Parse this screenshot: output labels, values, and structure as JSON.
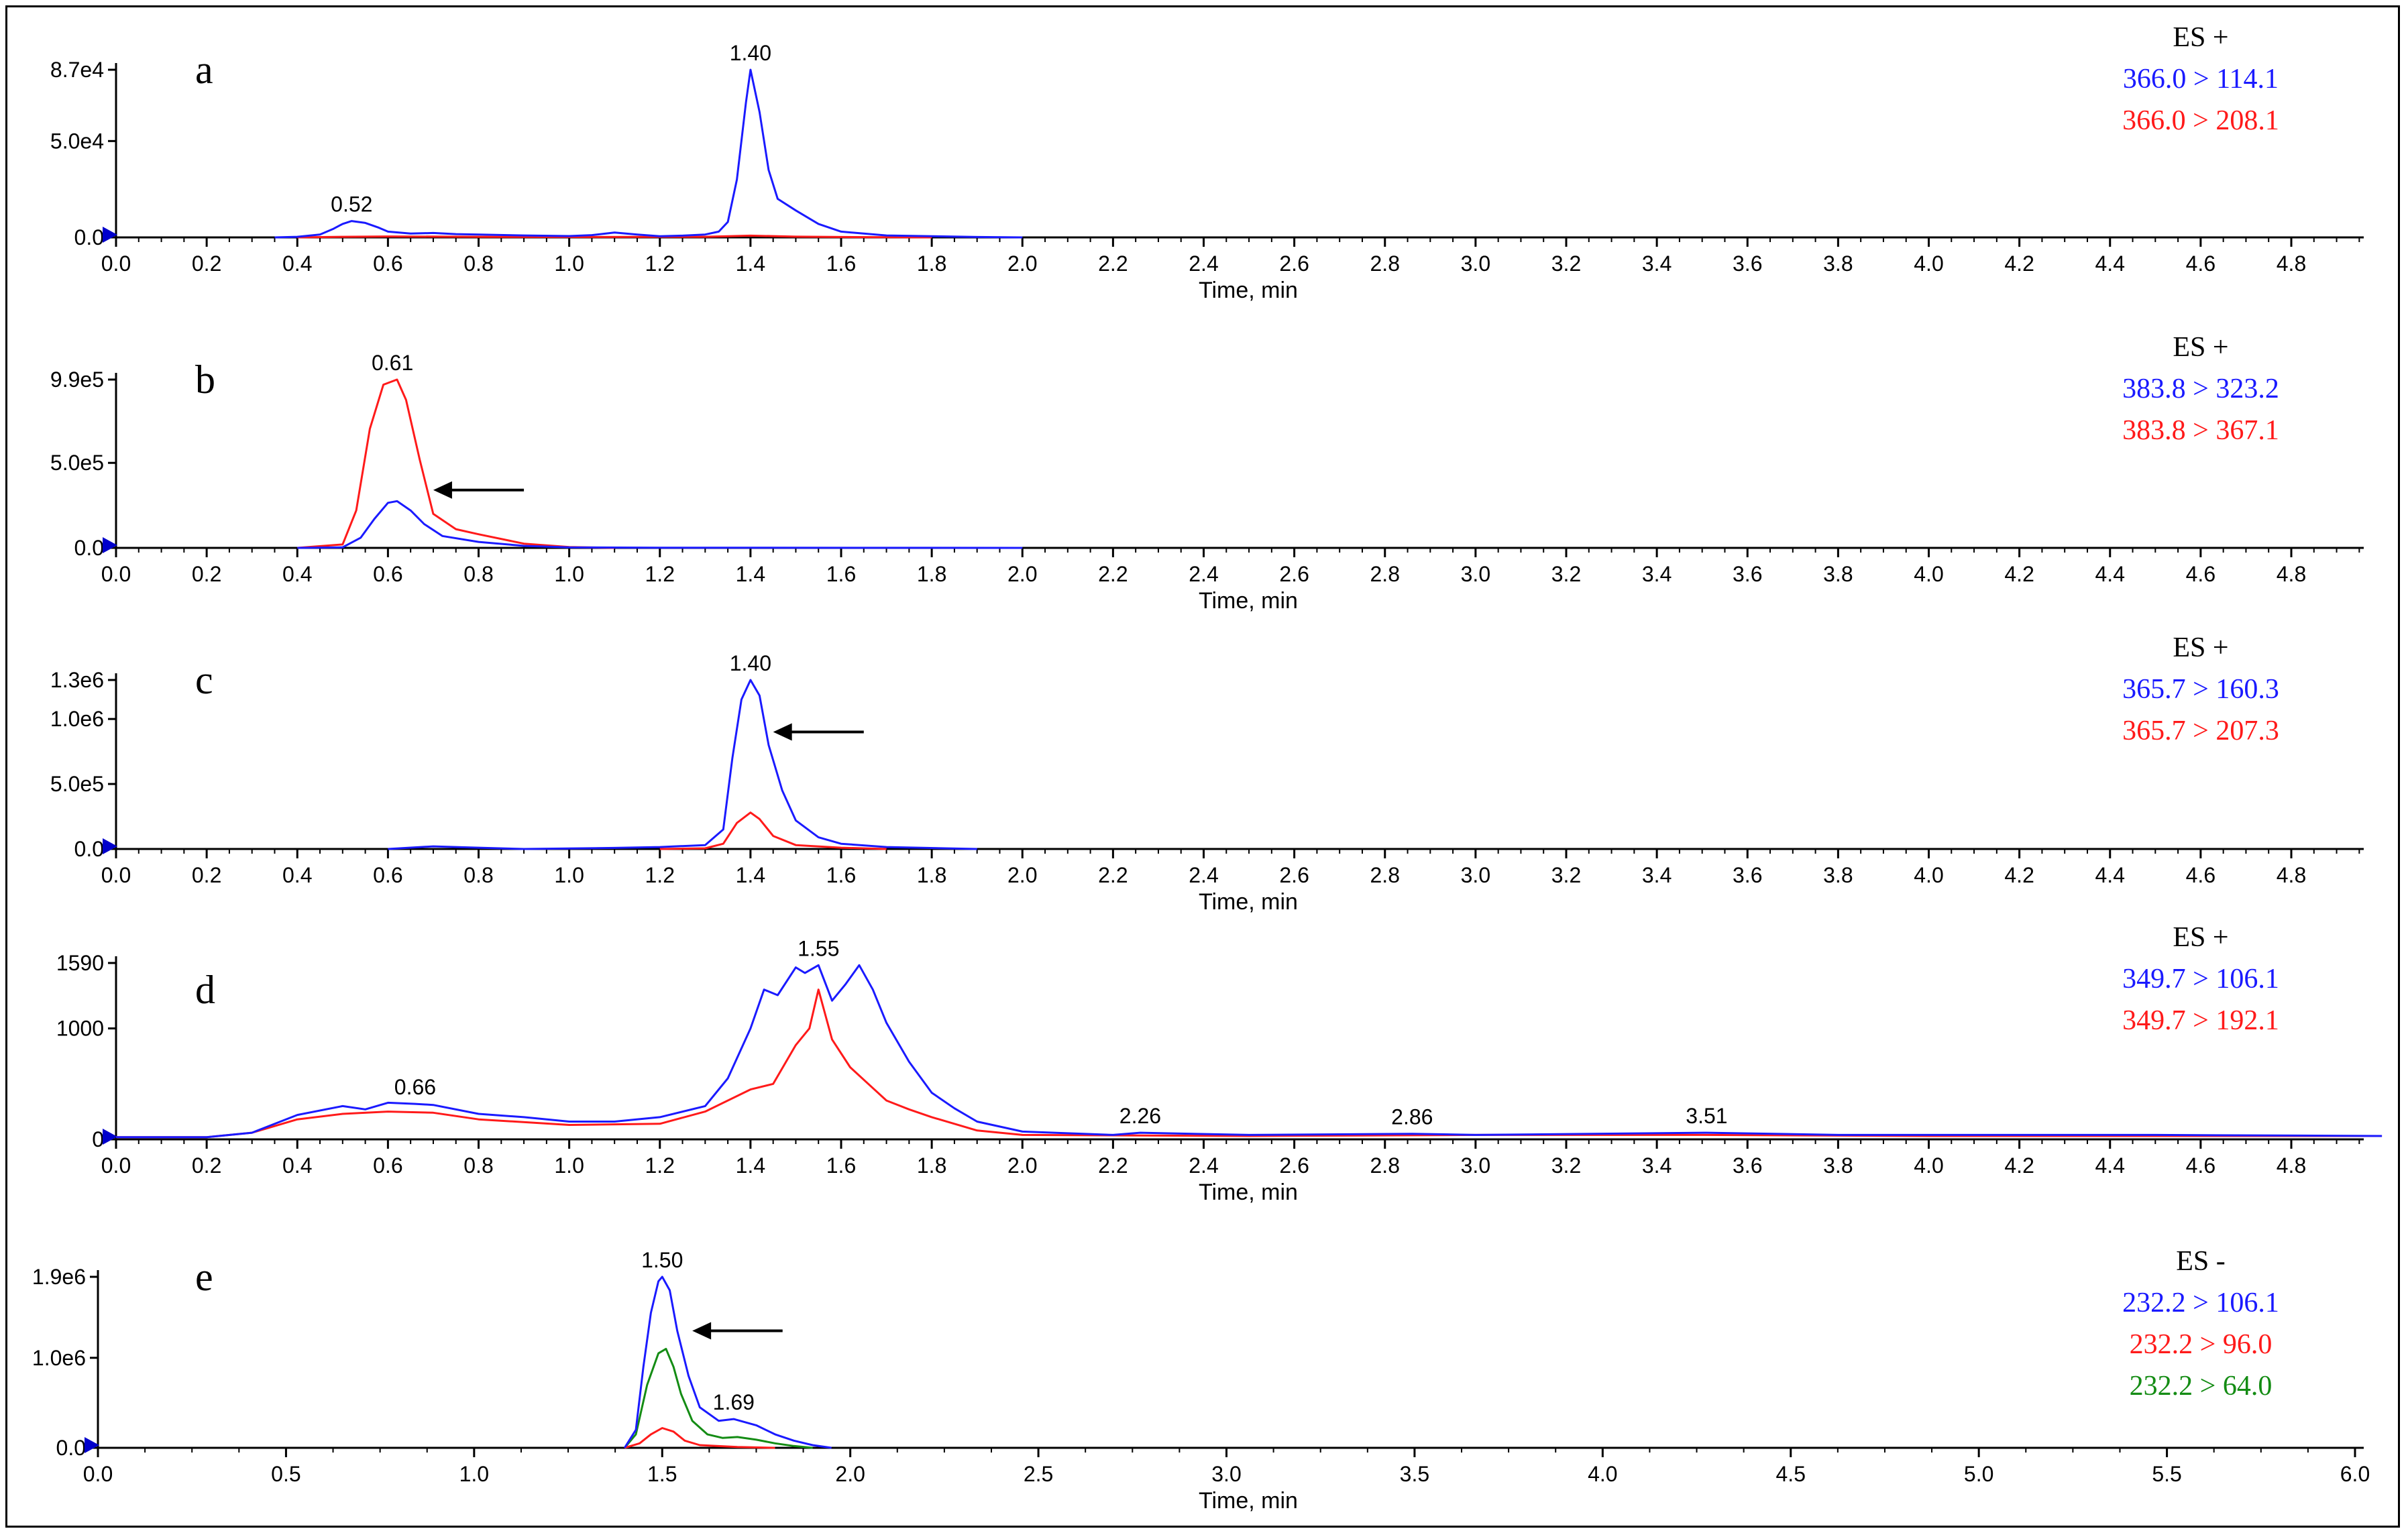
{
  "chart_data": [
    {
      "type": "line",
      "panel_label": "a",
      "ion_mode": "ES +",
      "xlabel": "Time, min",
      "xlim": [
        0,
        5.0
      ],
      "x_ticks": [
        "0.0",
        "0.2",
        "0.4",
        "0.6",
        "0.8",
        "1.0",
        "1.2",
        "1.4",
        "1.6",
        "1.8",
        "2.0",
        "2.2",
        "2.4",
        "2.6",
        "2.8",
        "3.0",
        "3.2",
        "3.4",
        "3.6",
        "3.8",
        "4.0",
        "4.2",
        "4.4",
        "4.6",
        "4.8"
      ],
      "y_ticks": [
        "0.0",
        "5.0e4",
        "8.7e4"
      ],
      "ylim": [
        0,
        87000
      ],
      "peak_labels": [
        {
          "x": 0.52,
          "text": "0.52"
        },
        {
          "x": 1.4,
          "text": "1.40"
        }
      ],
      "series": [
        {
          "name": "366.0 > 114.1",
          "color": "#1a1aff",
          "x": [
            0.35,
            0.4,
            0.45,
            0.48,
            0.5,
            0.52,
            0.55,
            0.58,
            0.6,
            0.65,
            0.7,
            0.75,
            0.8,
            0.9,
            1.0,
            1.05,
            1.1,
            1.15,
            1.2,
            1.25,
            1.3,
            1.33,
            1.35,
            1.37,
            1.39,
            1.4,
            1.42,
            1.44,
            1.46,
            1.5,
            1.55,
            1.6,
            1.7,
            1.9,
            2.0
          ],
          "y": [
            0,
            300,
            1500,
            4500,
            7000,
            8500,
            7500,
            5000,
            3000,
            2000,
            2300,
            1700,
            1500,
            1000,
            700,
            1200,
            2500,
            1500,
            600,
            900,
            1500,
            3000,
            8000,
            30000,
            70000,
            87000,
            65000,
            35000,
            20000,
            14000,
            7000,
            3000,
            1000,
            200,
            0
          ]
        },
        {
          "name": "366.0 > 208.1",
          "color": "#ff1a1a",
          "x": [
            0.4,
            0.5,
            0.6,
            0.8,
            1.0,
            1.3,
            1.4,
            1.5,
            1.6,
            1.8
          ],
          "y": [
            0,
            300,
            500,
            300,
            200,
            300,
            900,
            400,
            200,
            0
          ]
        }
      ]
    },
    {
      "type": "line",
      "panel_label": "b",
      "ion_mode": "ES +",
      "xlabel": "Time, min",
      "xlim": [
        0,
        5.0
      ],
      "x_ticks": [
        "0.0",
        "0.2",
        "0.4",
        "0.6",
        "0.8",
        "1.0",
        "1.2",
        "1.4",
        "1.6",
        "1.8",
        "2.0",
        "2.2",
        "2.4",
        "2.6",
        "2.8",
        "3.0",
        "3.2",
        "3.4",
        "3.6",
        "3.8",
        "4.0",
        "4.2",
        "4.4",
        "4.6",
        "4.8"
      ],
      "y_ticks": [
        "0.0",
        "5.0e5",
        "9.9e5"
      ],
      "ylim": [
        0,
        990000
      ],
      "peak_labels": [
        {
          "x": 0.61,
          "text": "0.61"
        }
      ],
      "arrow": {
        "from_x": 0.9,
        "to_x": 0.7,
        "y": 340000
      },
      "series": [
        {
          "name": "383.8 > 323.2",
          "color": "#1a1aff",
          "x": [
            0.4,
            0.5,
            0.54,
            0.57,
            0.6,
            0.62,
            0.65,
            0.68,
            0.72,
            0.8,
            0.9,
            1.0,
            1.2,
            2.0
          ],
          "y": [
            0,
            3000,
            60000,
            170000,
            265000,
            275000,
            220000,
            140000,
            70000,
            35000,
            12000,
            3000,
            1000,
            0
          ]
        },
        {
          "name": "383.8 > 367.1",
          "color": "#ff1a1a",
          "x": [
            0.4,
            0.5,
            0.53,
            0.56,
            0.59,
            0.62,
            0.64,
            0.67,
            0.7,
            0.75,
            0.8,
            0.9,
            1.0,
            1.1
          ],
          "y": [
            0,
            20000,
            220000,
            700000,
            960000,
            990000,
            870000,
            520000,
            200000,
            110000,
            80000,
            25000,
            5000,
            0
          ]
        }
      ]
    },
    {
      "type": "line",
      "panel_label": "c",
      "ion_mode": "ES +",
      "xlabel": "Time, min",
      "xlim": [
        0,
        5.0
      ],
      "x_ticks": [
        "0.0",
        "0.2",
        "0.4",
        "0.6",
        "0.8",
        "1.0",
        "1.2",
        "1.4",
        "1.6",
        "1.8",
        "2.0",
        "2.2",
        "2.4",
        "2.6",
        "2.8",
        "3.0",
        "3.2",
        "3.4",
        "3.6",
        "3.8",
        "4.0",
        "4.2",
        "4.4",
        "4.6",
        "4.8"
      ],
      "y_ticks": [
        "0.0",
        "5.0e5",
        "1.0e6",
        "1.3e6"
      ],
      "ylim": [
        0,
        1300000
      ],
      "peak_labels": [
        {
          "x": 1.4,
          "text": "1.40"
        }
      ],
      "arrow": {
        "from_x": 1.65,
        "to_x": 1.45,
        "y": 900000
      },
      "series": [
        {
          "name": "365.7 > 160.3",
          "color": "#1a1aff",
          "x": [
            0.6,
            0.7,
            0.8,
            0.9,
            1.1,
            1.2,
            1.3,
            1.34,
            1.36,
            1.38,
            1.4,
            1.42,
            1.44,
            1.47,
            1.5,
            1.55,
            1.6,
            1.7,
            1.9
          ],
          "y": [
            0,
            20000,
            10000,
            0,
            8000,
            15000,
            30000,
            150000,
            700000,
            1150000,
            1300000,
            1180000,
            800000,
            450000,
            220000,
            90000,
            40000,
            15000,
            0
          ]
        },
        {
          "name": "365.7 > 207.3",
          "color": "#ff1a1a",
          "x": [
            1.2,
            1.3,
            1.34,
            1.37,
            1.4,
            1.42,
            1.45,
            1.5,
            1.6,
            1.7
          ],
          "y": [
            0,
            5000,
            40000,
            200000,
            280000,
            230000,
            100000,
            30000,
            10000,
            0
          ]
        }
      ]
    },
    {
      "type": "line",
      "panel_label": "d",
      "ion_mode": "ES +",
      "xlabel": "Time, min",
      "xlim": [
        0,
        5.0
      ],
      "x_ticks": [
        "0.0",
        "0.2",
        "0.4",
        "0.6",
        "0.8",
        "1.0",
        "1.2",
        "1.4",
        "1.6",
        "1.8",
        "2.0",
        "2.2",
        "2.4",
        "2.6",
        "2.8",
        "3.0",
        "3.2",
        "3.4",
        "3.6",
        "3.8",
        "4.0",
        "4.2",
        "4.4",
        "4.6",
        "4.8"
      ],
      "y_ticks": [
        "0",
        "1000",
        "1590"
      ],
      "ylim": [
        0,
        1590
      ],
      "peak_labels": [
        {
          "x": 0.66,
          "text": "0.66"
        },
        {
          "x": 1.55,
          "text": "1.55"
        },
        {
          "x": 2.26,
          "text": "2.26"
        },
        {
          "x": 2.86,
          "text": "2.86"
        },
        {
          "x": 3.51,
          "text": "3.51"
        }
      ],
      "series": [
        {
          "name": "349.7 > 106.1",
          "color": "#1a1aff",
          "x": [
            0.0,
            0.2,
            0.3,
            0.4,
            0.5,
            0.55,
            0.6,
            0.66,
            0.7,
            0.8,
            0.9,
            1.0,
            1.1,
            1.2,
            1.3,
            1.35,
            1.4,
            1.43,
            1.46,
            1.5,
            1.52,
            1.55,
            1.58,
            1.61,
            1.64,
            1.67,
            1.7,
            1.75,
            1.8,
            1.85,
            1.9,
            2.0,
            2.2,
            2.26,
            2.5,
            2.86,
            3.0,
            3.51,
            3.8,
            4.2,
            4.5,
            5.0
          ],
          "y": [
            20,
            20,
            60,
            220,
            300,
            270,
            330,
            320,
            310,
            230,
            200,
            160,
            160,
            200,
            300,
            550,
            1000,
            1350,
            1300,
            1550,
            1500,
            1570,
            1250,
            1400,
            1570,
            1350,
            1050,
            700,
            420,
            280,
            160,
            70,
            40,
            60,
            40,
            50,
            40,
            60,
            40,
            40,
            40,
            30
          ]
        },
        {
          "name": "349.7 > 192.1",
          "color": "#ff1a1a",
          "x": [
            0.0,
            0.2,
            0.3,
            0.4,
            0.5,
            0.6,
            0.7,
            0.8,
            1.0,
            1.2,
            1.3,
            1.4,
            1.45,
            1.5,
            1.53,
            1.55,
            1.58,
            1.62,
            1.66,
            1.7,
            1.75,
            1.8,
            1.9,
            2.0,
            2.5,
            3.0,
            3.5,
            4.0,
            4.5,
            5.0
          ],
          "y": [
            20,
            20,
            60,
            180,
            230,
            250,
            240,
            180,
            130,
            140,
            250,
            450,
            500,
            850,
            1000,
            1350,
            900,
            650,
            500,
            350,
            270,
            200,
            80,
            40,
            30,
            40,
            40,
            30,
            30,
            30
          ]
        }
      ]
    },
    {
      "type": "line",
      "panel_label": "e",
      "ion_mode": "ES -",
      "xlabel": "Time, min",
      "xlim": [
        0,
        6.0
      ],
      "x_ticks": [
        "0.0",
        "0.5",
        "1.0",
        "1.5",
        "2.0",
        "2.5",
        "3.0",
        "3.5",
        "4.0",
        "4.5",
        "5.0",
        "5.5",
        "6.0"
      ],
      "y_ticks": [
        "0.0",
        "1.0e6",
        "1.9e6"
      ],
      "ylim": [
        0,
        1900000
      ],
      "peak_labels": [
        {
          "x": 1.5,
          "text": "1.50"
        },
        {
          "x": 1.69,
          "text": "1.69"
        }
      ],
      "arrow": {
        "from_x": 1.82,
        "to_x": 1.58,
        "y": 1300000
      },
      "series": [
        {
          "name": "232.2 > 106.1",
          "color": "#1a1aff",
          "x": [
            1.4,
            1.43,
            1.45,
            1.47,
            1.49,
            1.5,
            1.52,
            1.54,
            1.57,
            1.6,
            1.65,
            1.69,
            1.75,
            1.8,
            1.85,
            1.9,
            1.95
          ],
          "y": [
            0,
            200000,
            900000,
            1500000,
            1850000,
            1900000,
            1750000,
            1300000,
            800000,
            450000,
            300000,
            320000,
            250000,
            150000,
            80000,
            30000,
            0
          ]
        },
        {
          "name": "232.2 > 96.0",
          "color": "#ff1a1a",
          "x": [
            1.4,
            1.44,
            1.47,
            1.5,
            1.53,
            1.56,
            1.6,
            1.7,
            1.8
          ],
          "y": [
            0,
            50000,
            150000,
            220000,
            180000,
            80000,
            30000,
            10000,
            0
          ]
        },
        {
          "name": "232.2 > 64.0",
          "color": "#148c14",
          "x": [
            1.4,
            1.43,
            1.46,
            1.49,
            1.51,
            1.53,
            1.55,
            1.58,
            1.62,
            1.66,
            1.7,
            1.75,
            1.8,
            1.85,
            1.9
          ],
          "y": [
            0,
            150000,
            700000,
            1050000,
            1100000,
            900000,
            600000,
            300000,
            150000,
            110000,
            120000,
            90000,
            50000,
            20000,
            0
          ]
        }
      ]
    }
  ]
}
